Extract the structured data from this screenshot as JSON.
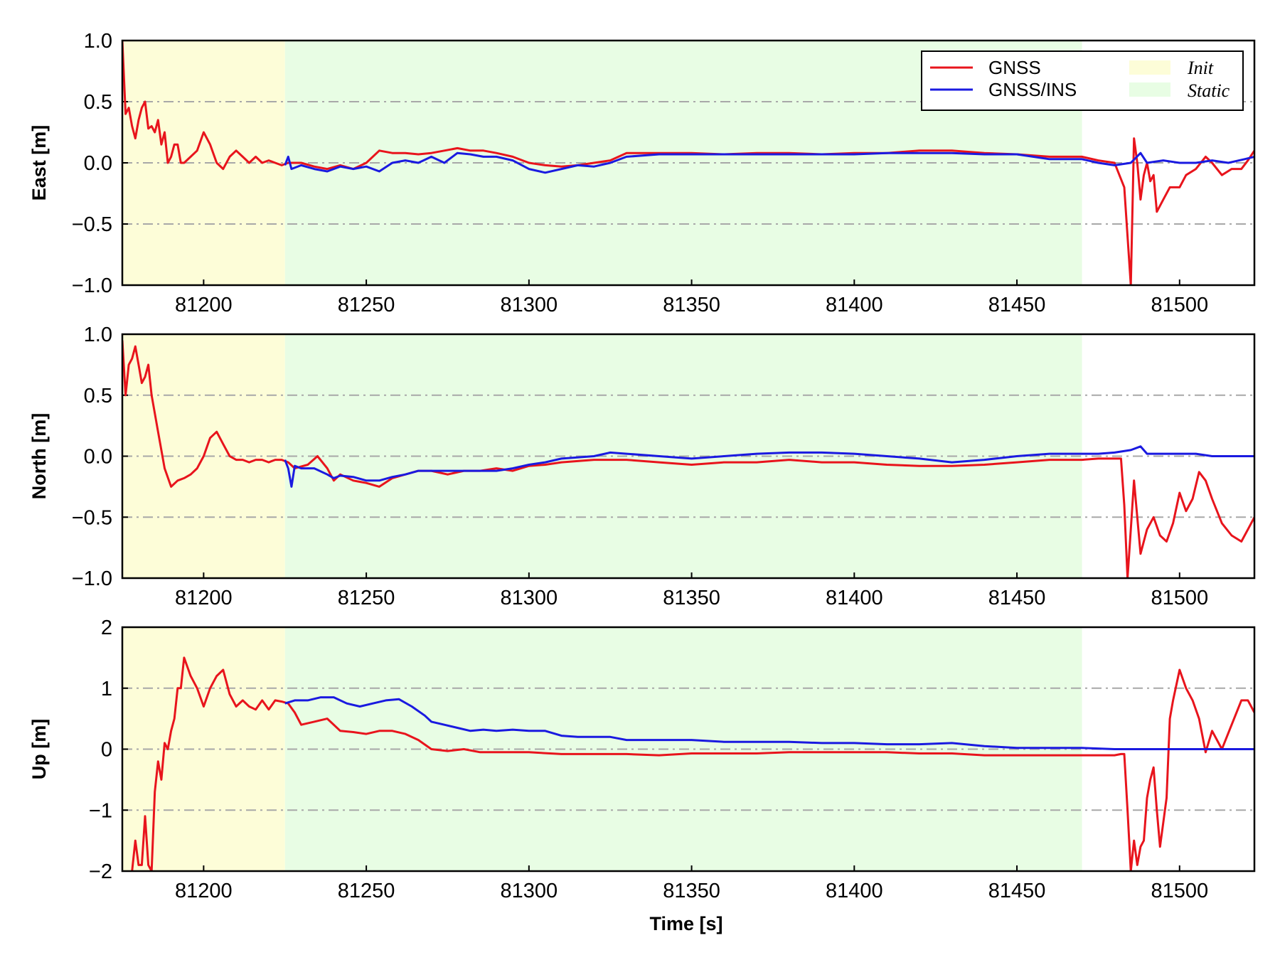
{
  "colors": {
    "gnss": "#e8141c",
    "gnss_ins": "#1a1ae0",
    "init": "#fdfdd8",
    "static": "#e8fde4",
    "grid": "#a8a8a8"
  },
  "legend": {
    "placement": "top-right",
    "gnss": "GNSS",
    "gnss_ins": "GNSS/INS",
    "init": "Init",
    "static": "Static"
  },
  "xlabel": "Time [s]",
  "chart_data": [
    {
      "type": "line",
      "ylabel": "East [m]",
      "xlim": [
        81175,
        81523
      ],
      "ylim": [
        -1.0,
        1.0
      ],
      "xticks": [
        "81200",
        "81250",
        "81300",
        "81350",
        "81400",
        "81450",
        "81500"
      ],
      "yticks": [
        "1.0",
        "0.5",
        "0.0",
        "−0.5",
        "−1.0"
      ],
      "grid": "dash-dot horizontal",
      "regions": [
        {
          "label": "Init",
          "x": [
            81175,
            81225
          ]
        },
        {
          "label": "Static",
          "x": [
            81225,
            81470
          ]
        }
      ],
      "series": [
        {
          "name": "GNSS",
          "x": [
            81175,
            81176,
            81177,
            81178,
            81179,
            81180,
            81181,
            81182,
            81183,
            81184,
            81185,
            81186,
            81187,
            81188,
            81189,
            81190,
            81191,
            81192,
            81193,
            81194,
            81196,
            81198,
            81200,
            81202,
            81204,
            81206,
            81208,
            81210,
            81212,
            81214,
            81216,
            81218,
            81220,
            81222,
            81224,
            81226,
            81230,
            81234,
            81238,
            81242,
            81246,
            81250,
            81254,
            81258,
            81262,
            81266,
            81270,
            81274,
            81278,
            81282,
            81286,
            81290,
            81295,
            81300,
            81305,
            81310,
            81315,
            81320,
            81325,
            81330,
            81340,
            81350,
            81360,
            81370,
            81380,
            81390,
            81400,
            81410,
            81420,
            81430,
            81440,
            81450,
            81460,
            81470,
            81475,
            81480,
            81483,
            81484,
            81485,
            81486,
            81487,
            81488,
            81489,
            81490,
            81491,
            81492,
            81493,
            81495,
            81497,
            81500,
            81502,
            81505,
            81508,
            81510,
            81513,
            81516,
            81519,
            81521,
            81523
          ],
          "values": [
            1.0,
            0.4,
            0.45,
            0.3,
            0.2,
            0.35,
            0.45,
            0.5,
            0.28,
            0.3,
            0.25,
            0.35,
            0.15,
            0.25,
            0.0,
            0.05,
            0.15,
            0.15,
            0.0,
            0.0,
            0.05,
            0.1,
            0.25,
            0.15,
            0.0,
            -0.05,
            0.05,
            0.1,
            0.05,
            0.0,
            0.05,
            0.0,
            0.02,
            0.0,
            -0.02,
            0.0,
            0.0,
            -0.03,
            -0.05,
            -0.02,
            -0.05,
            0.0,
            0.1,
            0.08,
            0.08,
            0.07,
            0.08,
            0.1,
            0.12,
            0.1,
            0.1,
            0.08,
            0.05,
            0.0,
            -0.02,
            -0.03,
            -0.02,
            0.0,
            0.02,
            0.08,
            0.08,
            0.08,
            0.07,
            0.08,
            0.08,
            0.07,
            0.08,
            0.08,
            0.1,
            0.1,
            0.08,
            0.07,
            0.05,
            0.05,
            0.02,
            0.0,
            -0.2,
            -0.6,
            -1.0,
            0.2,
            0.0,
            -0.3,
            -0.1,
            0.0,
            -0.15,
            -0.1,
            -0.4,
            -0.3,
            -0.2,
            -0.2,
            -0.1,
            -0.05,
            0.05,
            0.0,
            -0.1,
            -0.05,
            -0.05,
            0.02,
            0.1
          ]
        },
        {
          "name": "GNSS/INS",
          "x": [
            81225,
            81226,
            81227,
            81230,
            81234,
            81238,
            81242,
            81246,
            81250,
            81254,
            81258,
            81262,
            81266,
            81270,
            81274,
            81278,
            81282,
            81286,
            81290,
            81295,
            81300,
            81305,
            81310,
            81315,
            81320,
            81325,
            81330,
            81340,
            81350,
            81360,
            81370,
            81380,
            81390,
            81400,
            81410,
            81420,
            81430,
            81440,
            81450,
            81460,
            81470,
            81475,
            81480,
            81485,
            81488,
            81490,
            81495,
            81500,
            81505,
            81510,
            81515,
            81520,
            81523
          ],
          "values": [
            -0.02,
            0.05,
            -0.05,
            -0.02,
            -0.05,
            -0.07,
            -0.03,
            -0.05,
            -0.03,
            -0.07,
            0.0,
            0.02,
            0.0,
            0.05,
            0.0,
            0.08,
            0.07,
            0.05,
            0.05,
            0.02,
            -0.05,
            -0.08,
            -0.05,
            -0.02,
            -0.03,
            0.0,
            0.05,
            0.07,
            0.07,
            0.07,
            0.07,
            0.07,
            0.07,
            0.07,
            0.08,
            0.08,
            0.08,
            0.07,
            0.07,
            0.03,
            0.03,
            0.0,
            -0.02,
            0.0,
            0.08,
            0.0,
            0.02,
            0.0,
            0.0,
            0.02,
            0.0,
            0.03,
            0.05
          ]
        }
      ]
    },
    {
      "type": "line",
      "ylabel": "North [m]",
      "xlim": [
        81175,
        81523
      ],
      "ylim": [
        -1.0,
        1.0
      ],
      "xticks": [
        "81200",
        "81250",
        "81300",
        "81350",
        "81400",
        "81450",
        "81500"
      ],
      "yticks": [
        "1.0",
        "0.5",
        "0.0",
        "−0.5",
        "−1.0"
      ],
      "grid": "dash-dot horizontal",
      "regions": [
        {
          "label": "Init",
          "x": [
            81175,
            81225
          ]
        },
        {
          "label": "Static",
          "x": [
            81225,
            81470
          ]
        }
      ],
      "series": [
        {
          "name": "GNSS",
          "x": [
            81175,
            81176,
            81177,
            81178,
            81179,
            81180,
            81181,
            81182,
            81183,
            81184,
            81186,
            81188,
            81190,
            81192,
            81194,
            81196,
            81198,
            81200,
            81202,
            81204,
            81206,
            81208,
            81210,
            81212,
            81214,
            81216,
            81218,
            81220,
            81222,
            81224,
            81226,
            81228,
            81232,
            81235,
            81238,
            81240,
            81242,
            81246,
            81250,
            81254,
            81258,
            81262,
            81266,
            81270,
            81275,
            81280,
            81285,
            81290,
            81295,
            81300,
            81305,
            81310,
            81320,
            81330,
            81340,
            81350,
            81360,
            81370,
            81380,
            81390,
            81400,
            81410,
            81420,
            81430,
            81440,
            81450,
            81460,
            81470,
            81475,
            81480,
            81482,
            81483,
            81484,
            81485,
            81486,
            81487,
            81488,
            81490,
            81492,
            81494,
            81496,
            81498,
            81500,
            81502,
            81504,
            81506,
            81508,
            81510,
            81513,
            81516,
            81519,
            81521,
            81523
          ],
          "values": [
            0.95,
            0.5,
            0.75,
            0.8,
            0.9,
            0.75,
            0.6,
            0.65,
            0.75,
            0.5,
            0.2,
            -0.1,
            -0.25,
            -0.2,
            -0.18,
            -0.15,
            -0.1,
            0.0,
            0.15,
            0.2,
            0.1,
            0.0,
            -0.03,
            -0.03,
            -0.05,
            -0.03,
            -0.03,
            -0.05,
            -0.03,
            -0.03,
            -0.05,
            -0.1,
            -0.07,
            0.0,
            -0.1,
            -0.2,
            -0.15,
            -0.2,
            -0.22,
            -0.25,
            -0.18,
            -0.15,
            -0.12,
            -0.12,
            -0.15,
            -0.12,
            -0.12,
            -0.1,
            -0.12,
            -0.08,
            -0.07,
            -0.05,
            -0.03,
            -0.03,
            -0.05,
            -0.07,
            -0.05,
            -0.05,
            -0.03,
            -0.05,
            -0.05,
            -0.07,
            -0.08,
            -0.08,
            -0.07,
            -0.05,
            -0.03,
            -0.03,
            -0.02,
            -0.02,
            -0.02,
            -0.4,
            -1.0,
            -0.6,
            -0.2,
            -0.5,
            -0.8,
            -0.6,
            -0.5,
            -0.65,
            -0.7,
            -0.55,
            -0.3,
            -0.45,
            -0.35,
            -0.13,
            -0.2,
            -0.35,
            -0.55,
            -0.65,
            -0.7,
            -0.6,
            -0.5
          ]
        },
        {
          "name": "GNSS/INS",
          "x": [
            81225,
            81226,
            81227,
            81228,
            81230,
            81234,
            81238,
            81240,
            81242,
            81246,
            81250,
            81254,
            81258,
            81262,
            81266,
            81270,
            81275,
            81280,
            81285,
            81290,
            81295,
            81300,
            81305,
            81310,
            81320,
            81325,
            81330,
            81340,
            81350,
            81360,
            81370,
            81380,
            81390,
            81400,
            81410,
            81420,
            81430,
            81440,
            81450,
            81460,
            81470,
            81475,
            81480,
            81485,
            81488,
            81490,
            81495,
            81500,
            81505,
            81510,
            81515,
            81520,
            81523
          ],
          "values": [
            -0.03,
            -0.1,
            -0.25,
            -0.08,
            -0.1,
            -0.1,
            -0.15,
            -0.18,
            -0.16,
            -0.17,
            -0.2,
            -0.2,
            -0.17,
            -0.15,
            -0.12,
            -0.12,
            -0.12,
            -0.12,
            -0.12,
            -0.12,
            -0.1,
            -0.07,
            -0.05,
            -0.02,
            0.0,
            0.03,
            0.02,
            0.0,
            -0.02,
            0.0,
            0.02,
            0.03,
            0.03,
            0.02,
            0.0,
            -0.02,
            -0.05,
            -0.03,
            0.0,
            0.02,
            0.02,
            0.02,
            0.03,
            0.05,
            0.08,
            0.02,
            0.02,
            0.02,
            0.02,
            0.0,
            0.0,
            0.0,
            0.0
          ]
        }
      ]
    },
    {
      "type": "line",
      "ylabel": "Up [m]",
      "xlim": [
        81175,
        81523
      ],
      "ylim": [
        -2,
        2
      ],
      "xticks": [
        "81200",
        "81250",
        "81300",
        "81350",
        "81400",
        "81450",
        "81500"
      ],
      "yticks": [
        "2",
        "1",
        "0",
        "−1",
        "−2"
      ],
      "grid": "dash-dot horizontal",
      "regions": [
        {
          "label": "Init",
          "x": [
            81175,
            81225
          ]
        },
        {
          "label": "Static",
          "x": [
            81225,
            81470
          ]
        }
      ],
      "series": [
        {
          "name": "GNSS",
          "x": [
            81178,
            81179,
            81180,
            81181,
            81182,
            81183,
            81184,
            81185,
            81186,
            81187,
            81188,
            81189,
            81190,
            81191,
            81192,
            81193,
            81194,
            81196,
            81198,
            81200,
            81202,
            81204,
            81206,
            81208,
            81210,
            81212,
            81214,
            81216,
            81218,
            81220,
            81222,
            81224,
            81226,
            81228,
            81230,
            81234,
            81238,
            81242,
            81246,
            81250,
            81254,
            81258,
            81262,
            81266,
            81270,
            81275,
            81280,
            81285,
            81290,
            81295,
            81300,
            81310,
            81320,
            81330,
            81340,
            81350,
            81360,
            81370,
            81380,
            81390,
            81400,
            81410,
            81420,
            81430,
            81440,
            81450,
            81460,
            81470,
            81475,
            81480,
            81482,
            81483,
            81484,
            81485,
            81486,
            81487,
            81488,
            81489,
            81490,
            81491,
            81492,
            81493,
            81494,
            81495,
            81496,
            81497,
            81498,
            81500,
            81502,
            81504,
            81506,
            81508,
            81510,
            81513,
            81516,
            81519,
            81521,
            81523
          ],
          "values": [
            -2.0,
            -1.5,
            -1.9,
            -1.9,
            -1.1,
            -1.9,
            -2.0,
            -0.7,
            -0.2,
            -0.5,
            0.1,
            0.0,
            0.3,
            0.5,
            1.0,
            1.0,
            1.5,
            1.2,
            1.0,
            0.7,
            1.0,
            1.2,
            1.3,
            0.9,
            0.7,
            0.8,
            0.7,
            0.65,
            0.8,
            0.65,
            0.8,
            0.78,
            0.75,
            0.6,
            0.4,
            0.45,
            0.5,
            0.3,
            0.28,
            0.25,
            0.3,
            0.3,
            0.25,
            0.15,
            0.0,
            -0.03,
            0.0,
            -0.05,
            -0.05,
            -0.05,
            -0.05,
            -0.08,
            -0.08,
            -0.08,
            -0.1,
            -0.07,
            -0.07,
            -0.07,
            -0.05,
            -0.05,
            -0.05,
            -0.05,
            -0.07,
            -0.07,
            -0.1,
            -0.1,
            -0.1,
            -0.1,
            -0.1,
            -0.1,
            -0.08,
            -0.08,
            -1.0,
            -2.0,
            -1.5,
            -1.9,
            -1.6,
            -1.5,
            -0.8,
            -0.5,
            -0.3,
            -1.0,
            -1.6,
            -1.2,
            -0.8,
            0.5,
            0.8,
            1.3,
            1.0,
            0.8,
            0.5,
            -0.05,
            0.3,
            0.0,
            0.4,
            0.8,
            0.8,
            0.6
          ]
        },
        {
          "name": "GNSS/INS",
          "x": [
            81225,
            81228,
            81232,
            81236,
            81240,
            81244,
            81248,
            81252,
            81256,
            81260,
            81264,
            81268,
            81270,
            81274,
            81278,
            81282,
            81286,
            81290,
            81295,
            81300,
            81305,
            81310,
            81315,
            81320,
            81325,
            81330,
            81340,
            81350,
            81360,
            81370,
            81380,
            81390,
            81400,
            81410,
            81420,
            81430,
            81440,
            81450,
            81460,
            81470,
            81480,
            81490,
            81500,
            81510,
            81520,
            81523
          ],
          "values": [
            0.75,
            0.8,
            0.8,
            0.85,
            0.85,
            0.75,
            0.7,
            0.75,
            0.8,
            0.82,
            0.7,
            0.55,
            0.45,
            0.4,
            0.35,
            0.3,
            0.32,
            0.3,
            0.32,
            0.3,
            0.3,
            0.22,
            0.2,
            0.2,
            0.2,
            0.15,
            0.15,
            0.15,
            0.12,
            0.12,
            0.12,
            0.1,
            0.1,
            0.08,
            0.08,
            0.1,
            0.05,
            0.02,
            0.02,
            0.02,
            0.0,
            0.0,
            0.0,
            0.0,
            0.0,
            0.0
          ]
        }
      ]
    }
  ]
}
